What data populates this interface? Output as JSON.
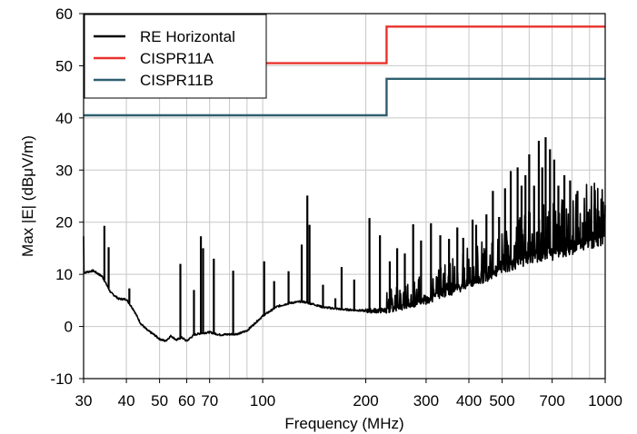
{
  "chart_data": {
    "type": "line",
    "title": "",
    "xlabel": "Frequency (MHz)",
    "ylabel": "Max |E| (dBμV/m)",
    "xscale": "log",
    "xlim": [
      30,
      1000
    ],
    "ylim": [
      -10,
      60
    ],
    "grid": true,
    "legend_position": "top-left",
    "x_ticks": [
      30,
      40,
      50,
      60,
      70,
      100,
      200,
      300,
      400,
      500,
      700,
      1000
    ],
    "x_tick_labels": [
      "30",
      "40",
      "50",
      "60",
      "70",
      "100",
      "200",
      "300",
      "400",
      "500",
      "700",
      "1000"
    ],
    "y_ticks": [
      -10,
      0,
      10,
      20,
      30,
      40,
      50,
      60
    ],
    "y_tick_labels": [
      "-10",
      "0",
      "10",
      "20",
      "30",
      "40",
      "50",
      "60"
    ],
    "series": [
      {
        "name": "RE Horizontal",
        "color": "#000000",
        "style": "noisy-spectrum",
        "baseline": [
          [
            30,
            10.3
          ],
          [
            32,
            10.7
          ],
          [
            34,
            9.6
          ],
          [
            36,
            6.5
          ],
          [
            38,
            5.3
          ],
          [
            40,
            5.2
          ],
          [
            42,
            3.2
          ],
          [
            44,
            0.6
          ],
          [
            46,
            -0.7
          ],
          [
            48,
            -1.5
          ],
          [
            50,
            -2.4
          ],
          [
            52,
            -2.8
          ],
          [
            54,
            -1.8
          ],
          [
            56,
            -2.6
          ],
          [
            58,
            -2.1
          ],
          [
            60,
            -2.8
          ],
          [
            63,
            -1.6
          ],
          [
            66,
            -1.3
          ],
          [
            70,
            -1.1
          ],
          [
            75,
            -1.6
          ],
          [
            80,
            -1.5
          ],
          [
            85,
            -1.4
          ],
          [
            90,
            -0.8
          ],
          [
            100,
            2.0
          ],
          [
            110,
            3.8
          ],
          [
            120,
            4.5
          ],
          [
            130,
            4.8
          ],
          [
            140,
            4.3
          ],
          [
            150,
            3.7
          ],
          [
            170,
            3.3
          ],
          [
            200,
            3.0
          ],
          [
            230,
            3.1
          ],
          [
            260,
            3.9
          ],
          [
            300,
            5.0
          ],
          [
            350,
            6.7
          ],
          [
            400,
            8.2
          ],
          [
            450,
            9.6
          ],
          [
            500,
            11.2
          ],
          [
            550,
            12.2
          ],
          [
            600,
            13.3
          ],
          [
            700,
            14.0
          ],
          [
            800,
            15.3
          ],
          [
            900,
            16.3
          ],
          [
            1000,
            17.3
          ]
        ],
        "peaks": [
          [
            34.5,
            19.3
          ],
          [
            35.5,
            15.2
          ],
          [
            40.8,
            7.3
          ],
          [
            57.5,
            12.0
          ],
          [
            63,
            7.0
          ],
          [
            66,
            17.3
          ],
          [
            67,
            15.0
          ],
          [
            72,
            13.0
          ],
          [
            82,
            10.7
          ],
          [
            101,
            12.5
          ],
          [
            108,
            8.7
          ],
          [
            119,
            10.6
          ],
          [
            130,
            15.7
          ],
          [
            135,
            25.1
          ],
          [
            137,
            19.5
          ],
          [
            150,
            8.0
          ],
          [
            163,
            5.4
          ],
          [
            170,
            11.4
          ],
          [
            185,
            9.0
          ],
          [
            205,
            20.8
          ],
          [
            220,
            17.5
          ],
          [
            235,
            12.5
          ],
          [
            247,
            15.0
          ],
          [
            260,
            14.0
          ],
          [
            275,
            19.6
          ],
          [
            290,
            16.5
          ],
          [
            310,
            19.8
          ],
          [
            330,
            17.5
          ],
          [
            350,
            16.8
          ],
          [
            370,
            19.0
          ],
          [
            385,
            17.0
          ],
          [
            410,
            20.5
          ],
          [
            420,
            19.5
          ],
          [
            450,
            21.5
          ],
          [
            470,
            26.0
          ],
          [
            490,
            21.0
          ],
          [
            510,
            26.5
          ],
          [
            530,
            29.8
          ],
          [
            555,
            30.5
          ],
          [
            570,
            27.0
          ],
          [
            585,
            29.0
          ],
          [
            600,
            33.0
          ],
          [
            620,
            27.0
          ],
          [
            640,
            35.6
          ],
          [
            655,
            30.5
          ],
          [
            670,
            36.3
          ],
          [
            690,
            34.0
          ],
          [
            710,
            32.0
          ],
          [
            730,
            27.0
          ],
          [
            760,
            29.0
          ],
          [
            790,
            28.0
          ],
          [
            830,
            26.0
          ],
          [
            860,
            20.0
          ],
          [
            890,
            22.0
          ],
          [
            930,
            23.2
          ],
          [
            960,
            21.0
          ],
          [
            990,
            20.0
          ]
        ]
      },
      {
        "name": "CISPR11A",
        "color": "#e8322b",
        "points": [
          [
            30,
            50.5
          ],
          [
            230,
            50.5
          ],
          [
            230,
            57.5
          ],
          [
            1000,
            57.5
          ]
        ]
      },
      {
        "name": "CISPR11B",
        "color": "#2e5e6f",
        "points": [
          [
            30,
            40.5
          ],
          [
            230,
            40.5
          ],
          [
            230,
            47.5
          ],
          [
            1000,
            47.5
          ]
        ]
      }
    ]
  }
}
